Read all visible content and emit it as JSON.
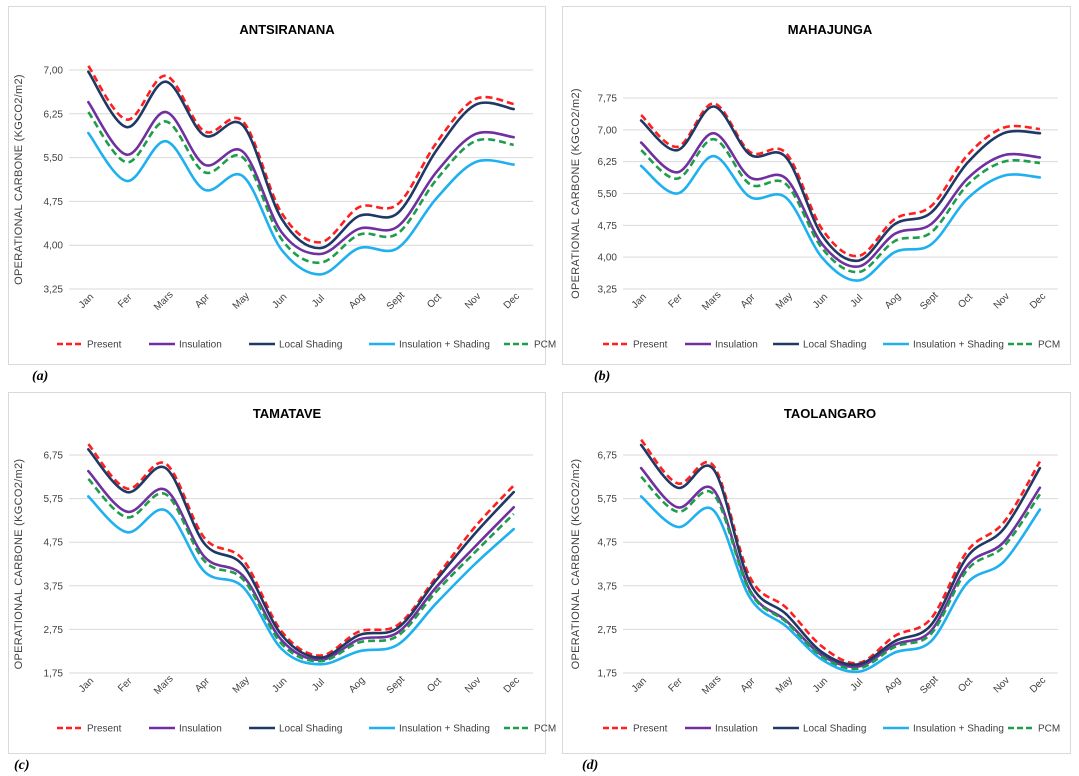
{
  "chart_data": [
    {
      "type": "line",
      "title": "ANTSIRANANA",
      "caption": "(a)",
      "ylabel": "OPERATIONAL CARBONE (KGCO2/m2)",
      "xlabel": "",
      "categories": [
        "Jan",
        "Fer",
        "Mars",
        "Apr",
        "May",
        "Jun",
        "Jul",
        "Aog",
        "Sept",
        "Oct",
        "Nov",
        "Dec"
      ],
      "ylim": [
        3.25,
        7.0
      ],
      "yticks": [
        3.25,
        4.0,
        4.75,
        5.5,
        6.25,
        7.0
      ],
      "ytick_labels": [
        "3,25",
        "4,00",
        "4,75",
        "5,50",
        "6,25",
        "7,00"
      ],
      "grid": true,
      "legend_position": "bottom",
      "series": [
        {
          "name": "Present",
          "values": [
            7.07,
            6.15,
            6.9,
            5.95,
            6.12,
            4.55,
            4.05,
            4.65,
            4.7,
            5.75,
            6.5,
            6.42
          ]
        },
        {
          "name": "Insulation",
          "values": [
            6.45,
            5.55,
            6.28,
            5.38,
            5.6,
            4.22,
            3.85,
            4.28,
            4.32,
            5.25,
            5.9,
            5.85
          ]
        },
        {
          "name": "Local Shading",
          "values": [
            6.97,
            6.02,
            6.8,
            5.88,
            6.05,
            4.45,
            3.95,
            4.5,
            4.55,
            5.62,
            6.4,
            6.33
          ]
        },
        {
          "name": "Insulation + Shading",
          "values": [
            5.92,
            5.1,
            5.78,
            4.95,
            5.18,
            3.92,
            3.5,
            3.95,
            3.95,
            4.8,
            5.42,
            5.38
          ]
        },
        {
          "name": "PCM",
          "values": [
            6.28,
            5.42,
            6.12,
            5.25,
            5.5,
            4.1,
            3.7,
            4.18,
            4.2,
            5.12,
            5.78,
            5.72
          ]
        }
      ]
    },
    {
      "type": "line",
      "title": "MAHAJUNGA",
      "caption": "(b)",
      "ylabel": "OPERATIONAL CARBONE (KGCO2/m2)",
      "xlabel": "",
      "categories": [
        "Jan",
        "Fer",
        "Mars",
        "Apr",
        "May",
        "Jun",
        "Jul",
        "Aog",
        "Sept",
        "Oct",
        "Nov",
        "Dec"
      ],
      "ylim": [
        3.25,
        7.75
      ],
      "yticks": [
        3.25,
        4.0,
        4.75,
        5.5,
        6.25,
        7.0,
        7.75
      ],
      "ytick_labels": [
        "3,25",
        "4,00",
        "4,75",
        "5,50",
        "6,25",
        "7,00",
        "7,75"
      ],
      "grid": true,
      "legend_position": "bottom",
      "series": [
        {
          "name": "Present",
          "values": [
            7.35,
            6.6,
            7.62,
            6.48,
            6.45,
            4.65,
            4.03,
            4.9,
            5.2,
            6.4,
            7.05,
            7.02
          ]
        },
        {
          "name": "Insulation",
          "values": [
            6.7,
            6.0,
            6.92,
            5.88,
            5.85,
            4.3,
            3.78,
            4.55,
            4.78,
            5.85,
            6.4,
            6.35
          ]
        },
        {
          "name": "Local Shading",
          "values": [
            7.22,
            6.52,
            7.55,
            6.42,
            6.35,
            4.5,
            3.92,
            4.78,
            5.05,
            6.22,
            6.92,
            6.92
          ]
        },
        {
          "name": "Insulation + Shading",
          "values": [
            6.15,
            5.5,
            6.38,
            5.42,
            5.4,
            3.98,
            3.45,
            4.12,
            4.3,
            5.38,
            5.92,
            5.88
          ]
        },
        {
          "name": "PCM",
          "values": [
            6.52,
            5.85,
            6.78,
            5.72,
            5.72,
            4.2,
            3.65,
            4.38,
            4.58,
            5.7,
            6.25,
            6.22
          ]
        }
      ]
    },
    {
      "type": "line",
      "title": "TAMATAVE",
      "caption": "(c)",
      "ylabel": "OPERATIONAL CARBONE (KGCO2/m2)",
      "xlabel": "",
      "categories": [
        "Jan",
        "Fer",
        "Mars",
        "Apr",
        "May",
        "Jun",
        "Jul",
        "Aog",
        "Sept",
        "Oct",
        "Nov",
        "Dec"
      ],
      "ylim": [
        1.75,
        6.75
      ],
      "yticks": [
        1.75,
        2.75,
        3.75,
        4.75,
        5.75,
        6.75
      ],
      "ytick_labels": [
        "1,75",
        "2,75",
        "3,75",
        "4,75",
        "5,75",
        "6,75"
      ],
      "grid": true,
      "legend_position": "bottom",
      "series": [
        {
          "name": "Present",
          "values": [
            7.0,
            5.98,
            6.55,
            4.85,
            4.35,
            2.7,
            2.15,
            2.7,
            2.85,
            3.95,
            5.1,
            6.05
          ]
        },
        {
          "name": "Insulation",
          "values": [
            6.38,
            5.45,
            5.95,
            4.42,
            3.98,
            2.5,
            2.05,
            2.52,
            2.68,
            3.72,
            4.65,
            5.55
          ]
        },
        {
          "name": "Local Shading",
          "values": [
            6.88,
            5.9,
            6.45,
            4.72,
            4.22,
            2.62,
            2.1,
            2.62,
            2.78,
            3.88,
            4.95,
            5.9
          ]
        },
        {
          "name": "Insulation + Shading",
          "values": [
            5.8,
            4.98,
            5.48,
            4.08,
            3.72,
            2.3,
            1.95,
            2.25,
            2.4,
            3.35,
            4.25,
            5.05
          ]
        },
        {
          "name": "PCM",
          "values": [
            6.2,
            5.32,
            5.85,
            4.32,
            3.9,
            2.42,
            2.02,
            2.45,
            2.6,
            3.62,
            4.52,
            5.4
          ]
        }
      ]
    },
    {
      "type": "line",
      "title": "TAOLANGARO",
      "caption": "(d)",
      "ylabel": "OPERATIONAL CARBONE (KGCO2/m2)",
      "xlabel": "",
      "categories": [
        "Jan",
        "Fer",
        "Mars",
        "Apr",
        "May",
        "Jun",
        "Jul",
        "Aog",
        "Sept",
        "Oct",
        "Nov",
        "Dec"
      ],
      "ylim": [
        1.75,
        6.75
      ],
      "yticks": [
        1.75,
        2.75,
        3.75,
        4.75,
        5.75,
        6.75
      ],
      "ytick_labels": [
        "1,75",
        "2,75",
        "3,75",
        "4,75",
        "5,75",
        "6,75"
      ],
      "grid": true,
      "legend_position": "bottom",
      "series": [
        {
          "name": "Present",
          "values": [
            7.1,
            6.1,
            6.5,
            3.95,
            3.25,
            2.35,
            1.98,
            2.6,
            3.0,
            4.55,
            5.2,
            6.6
          ]
        },
        {
          "name": "Insulation",
          "values": [
            6.45,
            5.55,
            5.95,
            3.65,
            2.95,
            2.15,
            1.9,
            2.4,
            2.72,
            4.22,
            4.75,
            6.0
          ]
        },
        {
          "name": "Local Shading",
          "values": [
            6.98,
            6.0,
            6.42,
            3.82,
            3.1,
            2.22,
            1.95,
            2.48,
            2.85,
            4.42,
            5.05,
            6.45
          ]
        },
        {
          "name": "Insulation + Shading",
          "values": [
            5.8,
            5.1,
            5.48,
            3.48,
            2.82,
            2.05,
            1.78,
            2.22,
            2.48,
            3.82,
            4.3,
            5.5
          ]
        },
        {
          "name": "PCM",
          "values": [
            6.25,
            5.45,
            5.85,
            3.62,
            2.92,
            2.12,
            1.85,
            2.35,
            2.65,
            4.12,
            4.65,
            5.85
          ]
        }
      ]
    }
  ],
  "style": {
    "series_colors": {
      "Present": "#ff1f1f",
      "Insulation": "#7030a0",
      "Local Shading": "#1f3864",
      "Insulation + Shading": "#1fb0f0",
      "PCM": "#1e9e4a"
    },
    "series_dash": {
      "Present": "dashed",
      "Insulation": "solid",
      "Local Shading": "solid",
      "Insulation + Shading": "solid",
      "PCM": "dashed"
    }
  }
}
